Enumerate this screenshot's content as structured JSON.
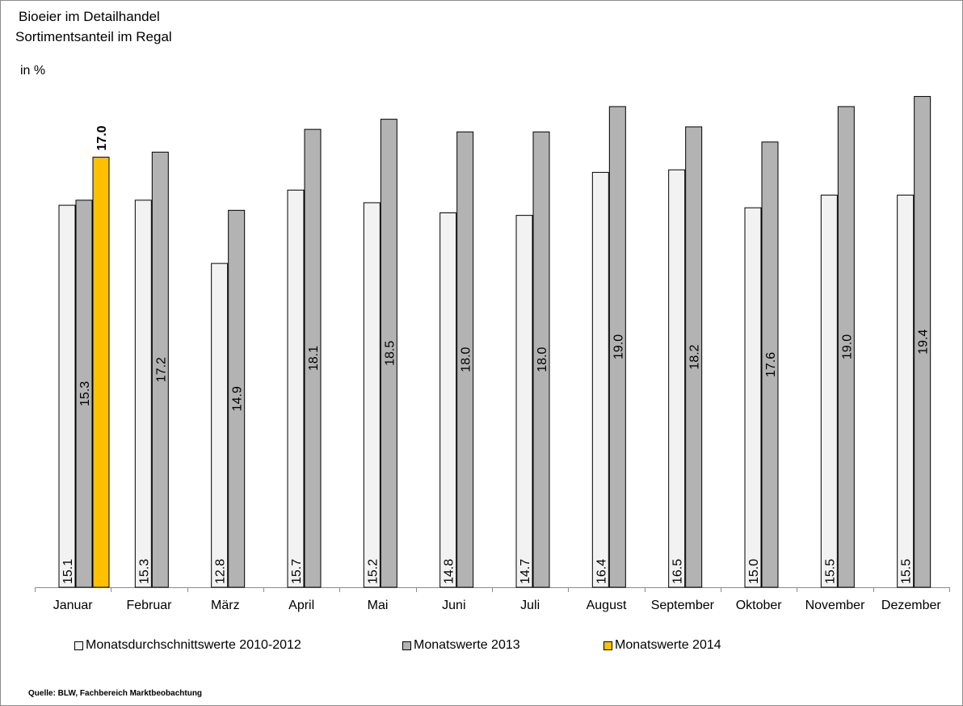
{
  "header": {
    "title_line1": "Bioeier im Detailhandel",
    "title_line2": "Sortimentsanteil im Regal",
    "unit": "in %"
  },
  "source": "Quelle: BLW, Fachbereich Marktbeobachtung",
  "colors": {
    "series_2010_2012": "#f2f2f2",
    "series_2013": "#b3b3b3",
    "series_2014": "#ffc000",
    "outline": "#000000",
    "axis": "#8c8c8c"
  },
  "chart_data": {
    "type": "bar",
    "title": "Bioeier im Detailhandel",
    "subtitle": "Sortimentsanteil im Regal",
    "ylabel": "in %",
    "ylim": [
      0,
      22
    ],
    "grid": false,
    "legend": "bottom",
    "categories": [
      "Januar",
      "Februar",
      "März",
      "April",
      "Mai",
      "Juni",
      "Juli",
      "August",
      "September",
      "Oktober",
      "November",
      "Dezember"
    ],
    "series": [
      {
        "name": "Monatsdurchschnittswerte 2010-2012",
        "values": [
          15.1,
          15.3,
          12.8,
          15.7,
          15.2,
          14.8,
          14.7,
          16.4,
          16.5,
          15.0,
          15.5,
          15.5
        ],
        "labels": [
          "15.1",
          "15.3",
          "12.8",
          "15.7",
          "15.2",
          "14.8",
          "14.7",
          "16.4",
          "16.5",
          "15.0",
          "15.5",
          "15.5"
        ]
      },
      {
        "name": "Monatswerte 2013",
        "values": [
          15.3,
          17.2,
          14.9,
          18.1,
          18.5,
          18.0,
          18.0,
          19.0,
          18.2,
          17.6,
          19.0,
          19.4
        ],
        "labels": [
          "15.3",
          "17.2",
          "14.9",
          "18.1",
          "18.5",
          "18.0",
          "18.0",
          "19.0",
          "18.2",
          "17.6",
          "19.0",
          "19.4"
        ]
      },
      {
        "name": "Monatswerte 2014",
        "values": [
          17.0,
          null,
          null,
          null,
          null,
          null,
          null,
          null,
          null,
          null,
          null,
          null
        ],
        "labels": [
          "17.0",
          "",
          "",
          "",
          "",
          "",
          "",
          "",
          "",
          "",
          "",
          ""
        ]
      }
    ]
  }
}
